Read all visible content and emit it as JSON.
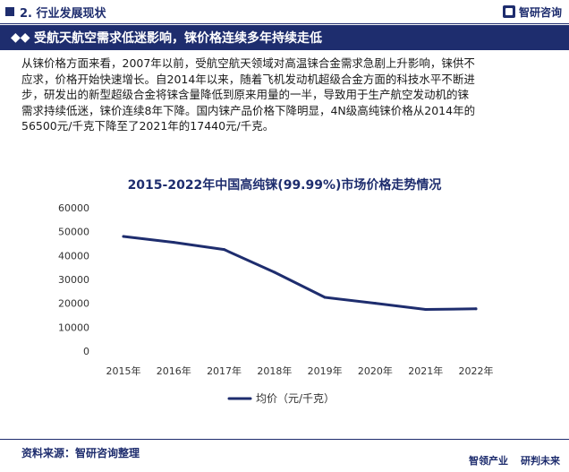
{
  "header": {
    "section": "2. 行业发展现状",
    "logo_text": "智研咨询",
    "logo_icon": "logo-mark-icon"
  },
  "banner": {
    "icon": "double-diamond-icon",
    "title": "受航天航空需求低迷影响，铼价格连续多年持续走低"
  },
  "paragraph": {
    "line1": "从铼价格方面来看，2007年以前，受航空航天领域对高温铼合金需求急剧上升影响，铼供不",
    "line2": "应求，价格开始快速增长。自2014年以来，随着飞机发动机超级合金方面的科技水平不断进",
    "line3": "步，研发出的新型超级合金将铼含量降低到原来用量的一半，导致用于生产航空发动机的铼",
    "line4": "需求持续低迷，铼价连续8年下降。国内铼产品价格下降明显，4N级高纯铼价格从2014年的",
    "line5": "56500元/千克下降至了2021年的17440元/千克。"
  },
  "chart_data": {
    "type": "line",
    "title": "2015-2022年中国高纯铼(99.99%)市场价格走势情况",
    "categories": [
      "2015年",
      "2016年",
      "2017年",
      "2018年",
      "2019年",
      "2020年",
      "2021年",
      "2022年"
    ],
    "series": [
      {
        "name": "均价（元/千克）",
        "values": [
          48000,
          45500,
          42500,
          33000,
          22500,
          20000,
          17440,
          17700
        ],
        "color": "#1e2d6e"
      }
    ],
    "ylim": [
      0,
      60000
    ],
    "yticks": [
      "0",
      "10000",
      "20000",
      "30000",
      "40000",
      "50000",
      "60000"
    ],
    "grid": false,
    "legend": "bottom-center"
  },
  "footer": {
    "source": "资料来源：智研咨询整理",
    "tag1": "智领产业",
    "tag2": "研判未来"
  }
}
